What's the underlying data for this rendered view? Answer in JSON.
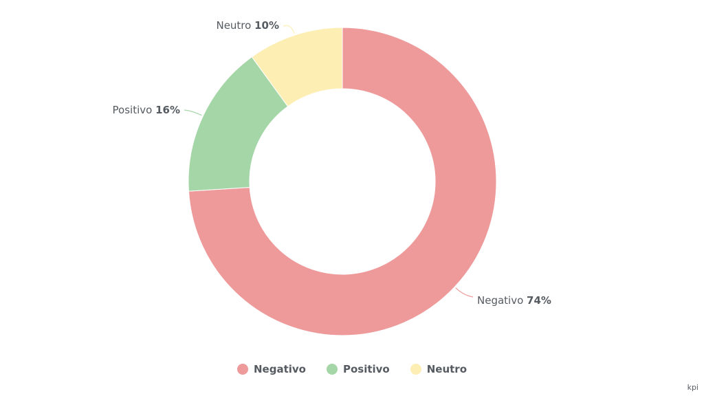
{
  "chart_data": {
    "type": "pie",
    "donut": true,
    "categories": [
      "Negativo",
      "Positivo",
      "Neutro"
    ],
    "values": [
      74,
      16,
      10
    ],
    "value_suffix": "%",
    "colors": [
      "#ee9a9b",
      "#a5d6a7",
      "#fdeeb3"
    ],
    "legend_position": "bottom-center",
    "data_labels": [
      {
        "name": "Negativo",
        "value": "74%"
      },
      {
        "name": "Positivo",
        "value": "16%"
      },
      {
        "name": "Neutro",
        "value": "10%"
      }
    ]
  },
  "legend": {
    "items": [
      {
        "label": "Negativo",
        "color": "#ee9a9b"
      },
      {
        "label": "Positivo",
        "color": "#a5d6a7"
      },
      {
        "label": "Neutro",
        "color": "#fdeeb3"
      }
    ]
  },
  "watermark": {
    "text": "kpi"
  }
}
